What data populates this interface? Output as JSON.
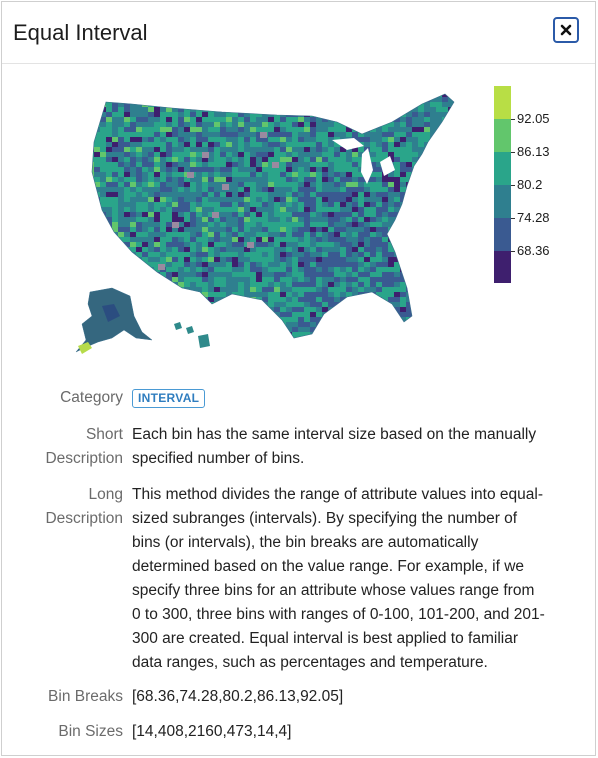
{
  "dialog": {
    "title": "Equal Interval",
    "close_icon": "close-icon"
  },
  "legend": {
    "ticks": [
      "92.05",
      "86.13",
      "80.2",
      "74.28",
      "68.36"
    ],
    "colors": [
      "#3e1f6e",
      "#3a5a91",
      "#2f7f8f",
      "#2aa58a",
      "#62c66c",
      "#b8de45"
    ]
  },
  "details": {
    "category_label": "Category",
    "category_value": "INTERVAL",
    "short_label_1": "Short",
    "short_label_2": "Description",
    "short_lines": [
      "Each bin has the same interval size based on the manually",
      "specified number of bins."
    ],
    "long_label_1": "Long",
    "long_label_2": "Description",
    "long_lines": [
      "This method divides the range of attribute values into equal-",
      "sized subranges (intervals). By specifying the number of",
      "bins (or intervals), the bin breaks are automatically",
      "determined based on the value range. For example, if we",
      "specify three bins for an attribute whose values range from",
      "0 to 300, three bins with ranges of 0-100, 101-200, and 201-",
      "300 are created. Equal interval is best applied to familiar",
      "data ranges, such as percentages and temperature."
    ],
    "bin_breaks_label": "Bin Breaks",
    "bin_breaks_value": "[68.36,74.28,80.2,86.13,92.05]",
    "bin_sizes_label": "Bin Sizes",
    "bin_sizes_value": "[14,408,2160,473,14,4]"
  }
}
